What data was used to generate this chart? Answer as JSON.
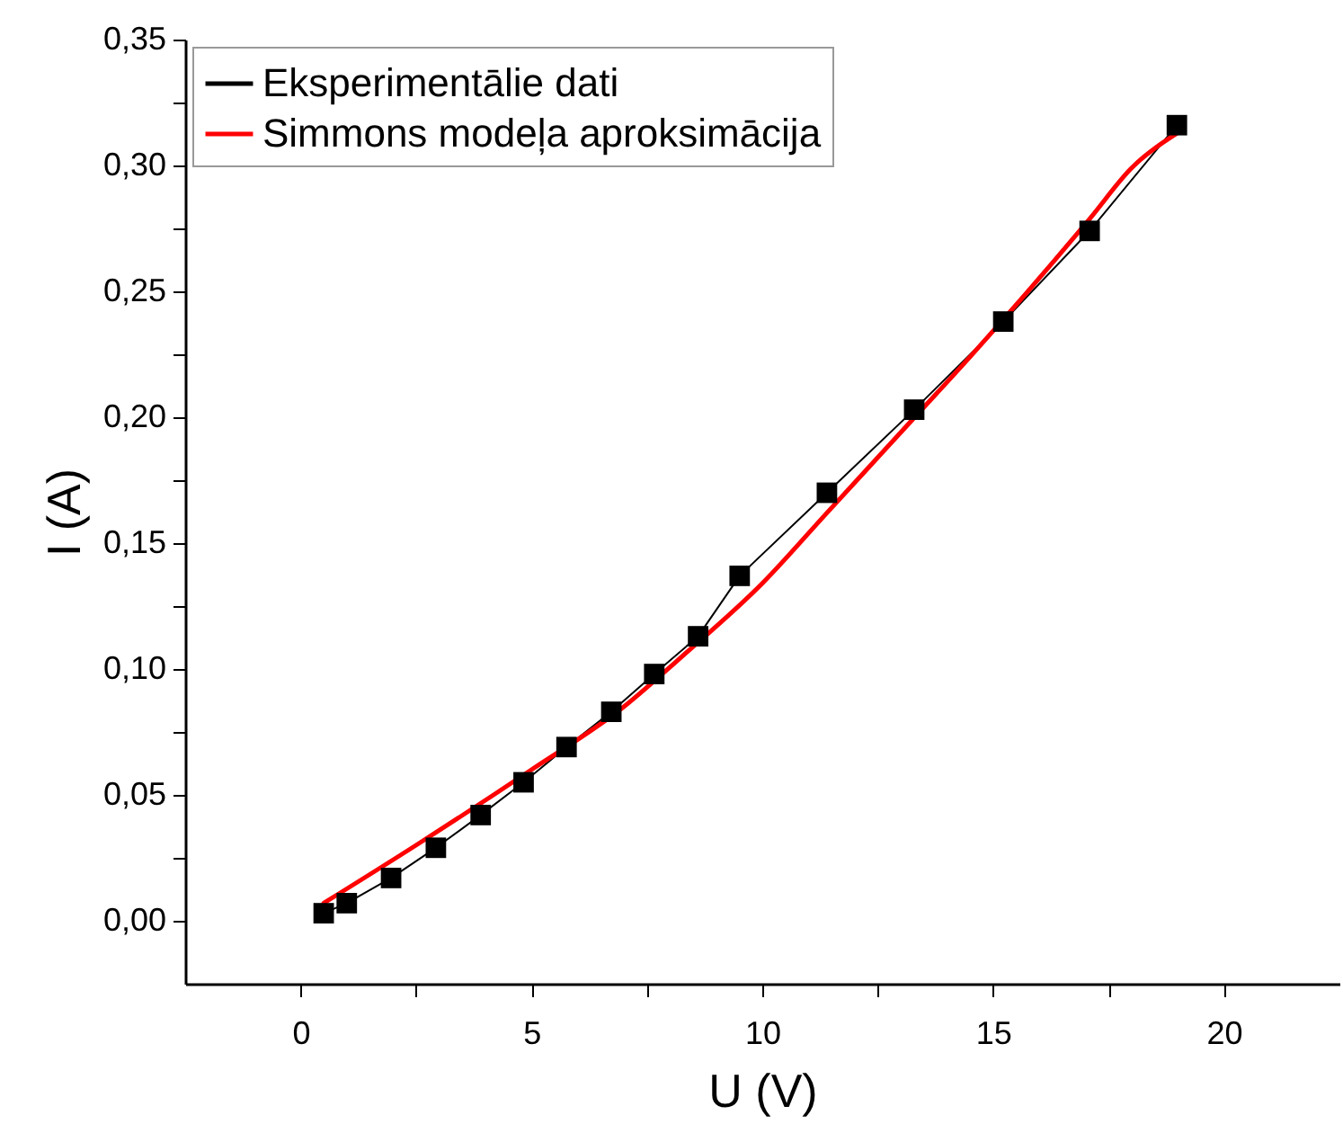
{
  "chart_data": {
    "type": "line",
    "xlabel": "U (V)",
    "ylabel": "I (A)",
    "xlim": [
      -2.5,
      22.5
    ],
    "ylim": [
      -0.025,
      0.35
    ],
    "xticks": [
      0,
      {
        "value": 2.5,
        "label": null
      },
      5,
      {
        "value": 7.5,
        "label": null
      },
      10,
      {
        "value": 12.5,
        "label": null
      },
      15,
      {
        "value": 17.5,
        "label": null
      },
      20
    ],
    "yticks": [
      {
        "value": 0,
        "label": "0,00"
      },
      {
        "value": 0.025,
        "label": null
      },
      {
        "value": 0.05,
        "label": "0,05"
      },
      {
        "value": 0.075,
        "label": null
      },
      {
        "value": 0.1,
        "label": "0,10"
      },
      {
        "value": 0.125,
        "label": null
      },
      {
        "value": 0.15,
        "label": "0,15"
      },
      {
        "value": 0.175,
        "label": null
      },
      {
        "value": 0.2,
        "label": "0,20"
      },
      {
        "value": 0.225,
        "label": null
      },
      {
        "value": 0.25,
        "label": "0,25"
      },
      {
        "value": 0.275,
        "label": null
      },
      {
        "value": 0.3,
        "label": "0,30"
      },
      {
        "value": 0.325,
        "label": null
      },
      {
        "value": 0.35,
        "label": "0,35"
      }
    ],
    "grid": false,
    "legend": "top left",
    "series": [
      {
        "name": "Eksperimentālie dati",
        "color": "#000000",
        "marker": "square",
        "x": [
          0.5,
          1.0,
          1.96,
          2.93,
          3.9,
          4.83,
          5.76,
          6.73,
          7.66,
          8.61,
          9.51,
          11.4,
          13.29,
          15.22,
          17.09,
          18.98
        ],
        "values": [
          0.003,
          0.007,
          0.017,
          0.029,
          0.042,
          0.055,
          0.069,
          0.083,
          0.098,
          0.113,
          0.137,
          0.17,
          0.203,
          0.238,
          0.274,
          0.316
        ]
      },
      {
        "name": "Simmons modeļa aproksimācija",
        "color": "#ff0000",
        "marker": "none",
        "x": [
          0.5,
          2.5,
          5,
          7,
          8.2,
          10,
          11.4,
          13.3,
          14.5,
          17.1,
          18,
          19
        ],
        "values": [
          0.007,
          0.03,
          0.06,
          0.085,
          0.104,
          0.134,
          0.162,
          0.2,
          0.224,
          0.279,
          0.299,
          0.313
        ]
      }
    ]
  }
}
